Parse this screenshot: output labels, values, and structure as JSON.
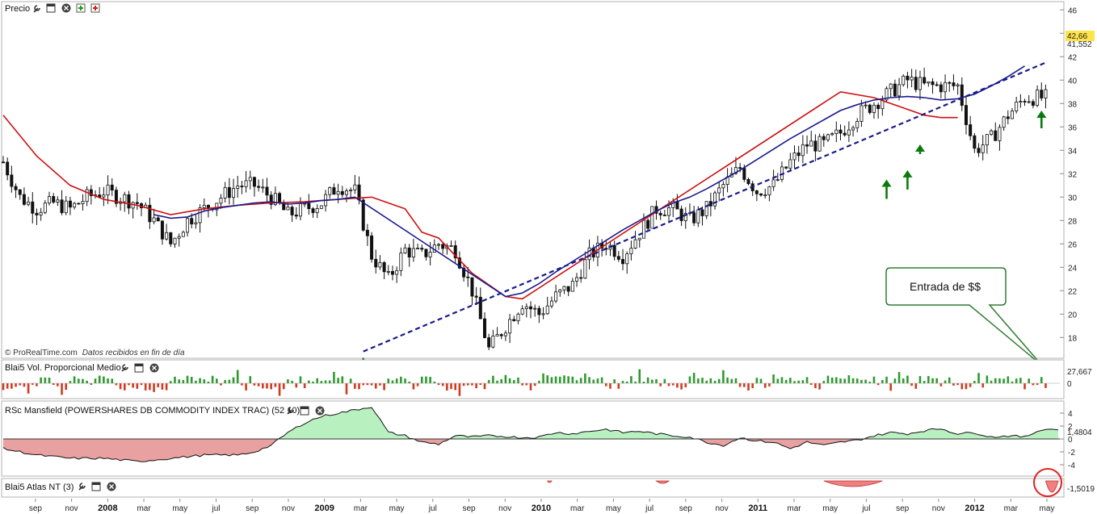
{
  "panels": {
    "price": {
      "title": "Precio"
    },
    "volume": {
      "title": "Blai5 Vol. Proporcional Medio"
    },
    "rsc": {
      "title": "RSc Mansfield (POWERSHARES DB COMMODITY INDEX TRAC) (52 10)"
    },
    "atlas": {
      "title": "Blai5 Atlas NT (3)"
    }
  },
  "watermark": {
    "brand": "© ProRealTime.com",
    "note": "Datos recibidos en fin de día"
  },
  "callout": {
    "text": "Entrada de $$"
  },
  "price_labels": {
    "last": "42,66",
    "ma": "41,552"
  },
  "volume_labels": {
    "last": "27,667",
    "zero": "0"
  },
  "rsc_labels": {
    "last": "1,4804"
  },
  "atlas_labels": {
    "last": "-1,5019"
  },
  "colors": {
    "red_ma": "#cc1010",
    "blue_ma": "#1a1a8c",
    "trendline": "#1a1a8c",
    "arrow": "#0a7a0a",
    "vol_up": "#2e9a2e",
    "vol_down": "#d03a20",
    "rsc_pos": "#b8f0c0",
    "rsc_neg": "#e8a0a0",
    "callout_border": "#2e7d32"
  },
  "chart_data": [
    {
      "type": "candlestick",
      "title": "Precio",
      "yticks": [
        18,
        20,
        22,
        24,
        26,
        28,
        30,
        32,
        34,
        36,
        38,
        40,
        42,
        44,
        46
      ],
      "ylim": [
        16.5,
        46.5
      ],
      "x_ticks": [
        "sep",
        "nov",
        "2008",
        "mar",
        "may",
        "jul",
        "sep",
        "nov",
        "2009",
        "mar",
        "may",
        "jul",
        "sep",
        "nov",
        "2010",
        "mar",
        "may",
        "jul",
        "sep",
        "nov",
        "2011",
        "mar",
        "may",
        "jul",
        "sep",
        "nov",
        "2012",
        "mar",
        "may"
      ],
      "bold_x_ticks": [
        "2008",
        "2009",
        "2010",
        "2011",
        "2012"
      ],
      "series": [
        {
          "name": "close",
          "x": [
            0,
            4,
            8,
            12,
            16,
            20,
            24,
            28,
            32,
            36,
            40,
            44,
            48,
            52,
            56,
            60,
            64,
            68,
            72,
            76,
            80,
            84,
            88,
            92,
            96,
            100,
            104,
            108,
            112,
            116,
            120,
            124,
            128,
            132,
            136,
            140,
            144,
            148,
            152,
            156,
            160,
            164,
            168,
            172,
            176,
            180,
            184,
            188,
            192,
            196,
            200,
            204,
            208,
            212,
            216,
            220,
            224,
            228,
            232,
            236,
            240,
            244
          ],
          "y": [
            33,
            30,
            29,
            29.5,
            29,
            30,
            30.5,
            30,
            29.5,
            28,
            26,
            28,
            29,
            30,
            31,
            31,
            30,
            28.5,
            29,
            29.5,
            31,
            30.5,
            25,
            23,
            25.5,
            25,
            26,
            25.5,
            22,
            17,
            19,
            21,
            20,
            21.5,
            22.5,
            25,
            26,
            25,
            27,
            29,
            29,
            28,
            29,
            31,
            32.5,
            30.5,
            31,
            33,
            34.5,
            34.5,
            35.5,
            37,
            38,
            39,
            40,
            39.5,
            39.5,
            39.5,
            34,
            35,
            37,
            38.5
          ]
        },
        {
          "name": "red_ma",
          "x": [
            0,
            8,
            16,
            24,
            32,
            40,
            48,
            56,
            64,
            72,
            80,
            88,
            96,
            100,
            104,
            108,
            112,
            116,
            120,
            124,
            200,
            208,
            212,
            216,
            220,
            224,
            228
          ],
          "y": [
            37,
            33.5,
            31,
            29.8,
            29.3,
            28.5,
            29,
            29.3,
            29.5,
            29.6,
            29.8,
            30,
            29,
            27,
            26.5,
            25,
            23.5,
            22.5,
            21.5,
            21.3,
            39,
            38.5,
            38,
            37.5,
            37,
            36.8,
            36.8
          ]
        },
        {
          "name": "blue_ma",
          "x": [
            36,
            40,
            44,
            48,
            52,
            56,
            60,
            64,
            68,
            72,
            76,
            80,
            84,
            120,
            124,
            128,
            132,
            136,
            140,
            144,
            148,
            152,
            156,
            160,
            164,
            168,
            172,
            176,
            180,
            184,
            188,
            192,
            196,
            200,
            204,
            208,
            212,
            216,
            220,
            224,
            228,
            232,
            236,
            240,
            244
          ],
          "y": [
            28.5,
            28.2,
            28.3,
            28.8,
            29.1,
            29.3,
            29.5,
            29.6,
            29.4,
            29.5,
            29.7,
            29.8,
            30,
            21.5,
            21.8,
            22.6,
            23.6,
            24.5,
            25.4,
            26.3,
            27.2,
            28,
            28.8,
            29.5,
            30,
            30.7,
            31.5,
            32.3,
            33.2,
            34.1,
            35,
            35.8,
            36.6,
            37.4,
            37.9,
            38.3,
            38.5,
            38.6,
            38.5,
            38.3,
            38.4,
            38.8,
            39.5,
            40.3,
            41.2
          ]
        },
        {
          "name": "trendline",
          "x": [
            86,
            249
          ],
          "y": [
            16.8,
            41.5
          ]
        }
      ],
      "arrows_x": [
        86,
        211,
        216,
        219,
        248
      ]
    },
    {
      "type": "bar",
      "title": "Blai5 Vol. Proporcional Medio",
      "ylim": [
        -12,
        12
      ],
      "last_value": 27.667
    },
    {
      "type": "area",
      "title": "RSc Mansfield (POWERSHARES DB COMMODITY INDEX TRAC) (52 10)",
      "yticks": [
        4,
        2,
        0,
        -2,
        -4
      ],
      "ylim": [
        -5.5,
        5.5
      ],
      "x": [
        0,
        8,
        16,
        24,
        32,
        40,
        48,
        56,
        60,
        64,
        68,
        72,
        76,
        80,
        84,
        88,
        92,
        96,
        100,
        104,
        108,
        112,
        116,
        120,
        124,
        128,
        132,
        136,
        140,
        144,
        148,
        152,
        156,
        160,
        164,
        168,
        172,
        176,
        180,
        184,
        188,
        192,
        196,
        200,
        204,
        208,
        212,
        216,
        220,
        224,
        228,
        232,
        236,
        240,
        244,
        248,
        252
      ],
      "y": [
        -1.5,
        -2.5,
        -3,
        -3,
        -3.5,
        -3,
        -2.5,
        -2.5,
        -2,
        -1,
        1,
        2.5,
        3.5,
        4,
        4.5,
        5,
        1,
        0.5,
        -0.5,
        -0.8,
        0.5,
        0.3,
        0.5,
        0.4,
        0.2,
        0.3,
        1,
        0.8,
        1.2,
        1.5,
        1,
        1.2,
        0.8,
        0.5,
        0.3,
        -0.5,
        -1,
        0.2,
        -0.3,
        -0.5,
        -1.5,
        -0.5,
        -1,
        -0.5,
        -0.2,
        0.5,
        1,
        0.8,
        1.3,
        1.6,
        0.8,
        1,
        0.3,
        0.5,
        0.3,
        1.4804,
        1.5
      ]
    },
    {
      "type": "bar",
      "title": "Blai5 Atlas NT (3)",
      "last_value": -1.5019
    }
  ]
}
